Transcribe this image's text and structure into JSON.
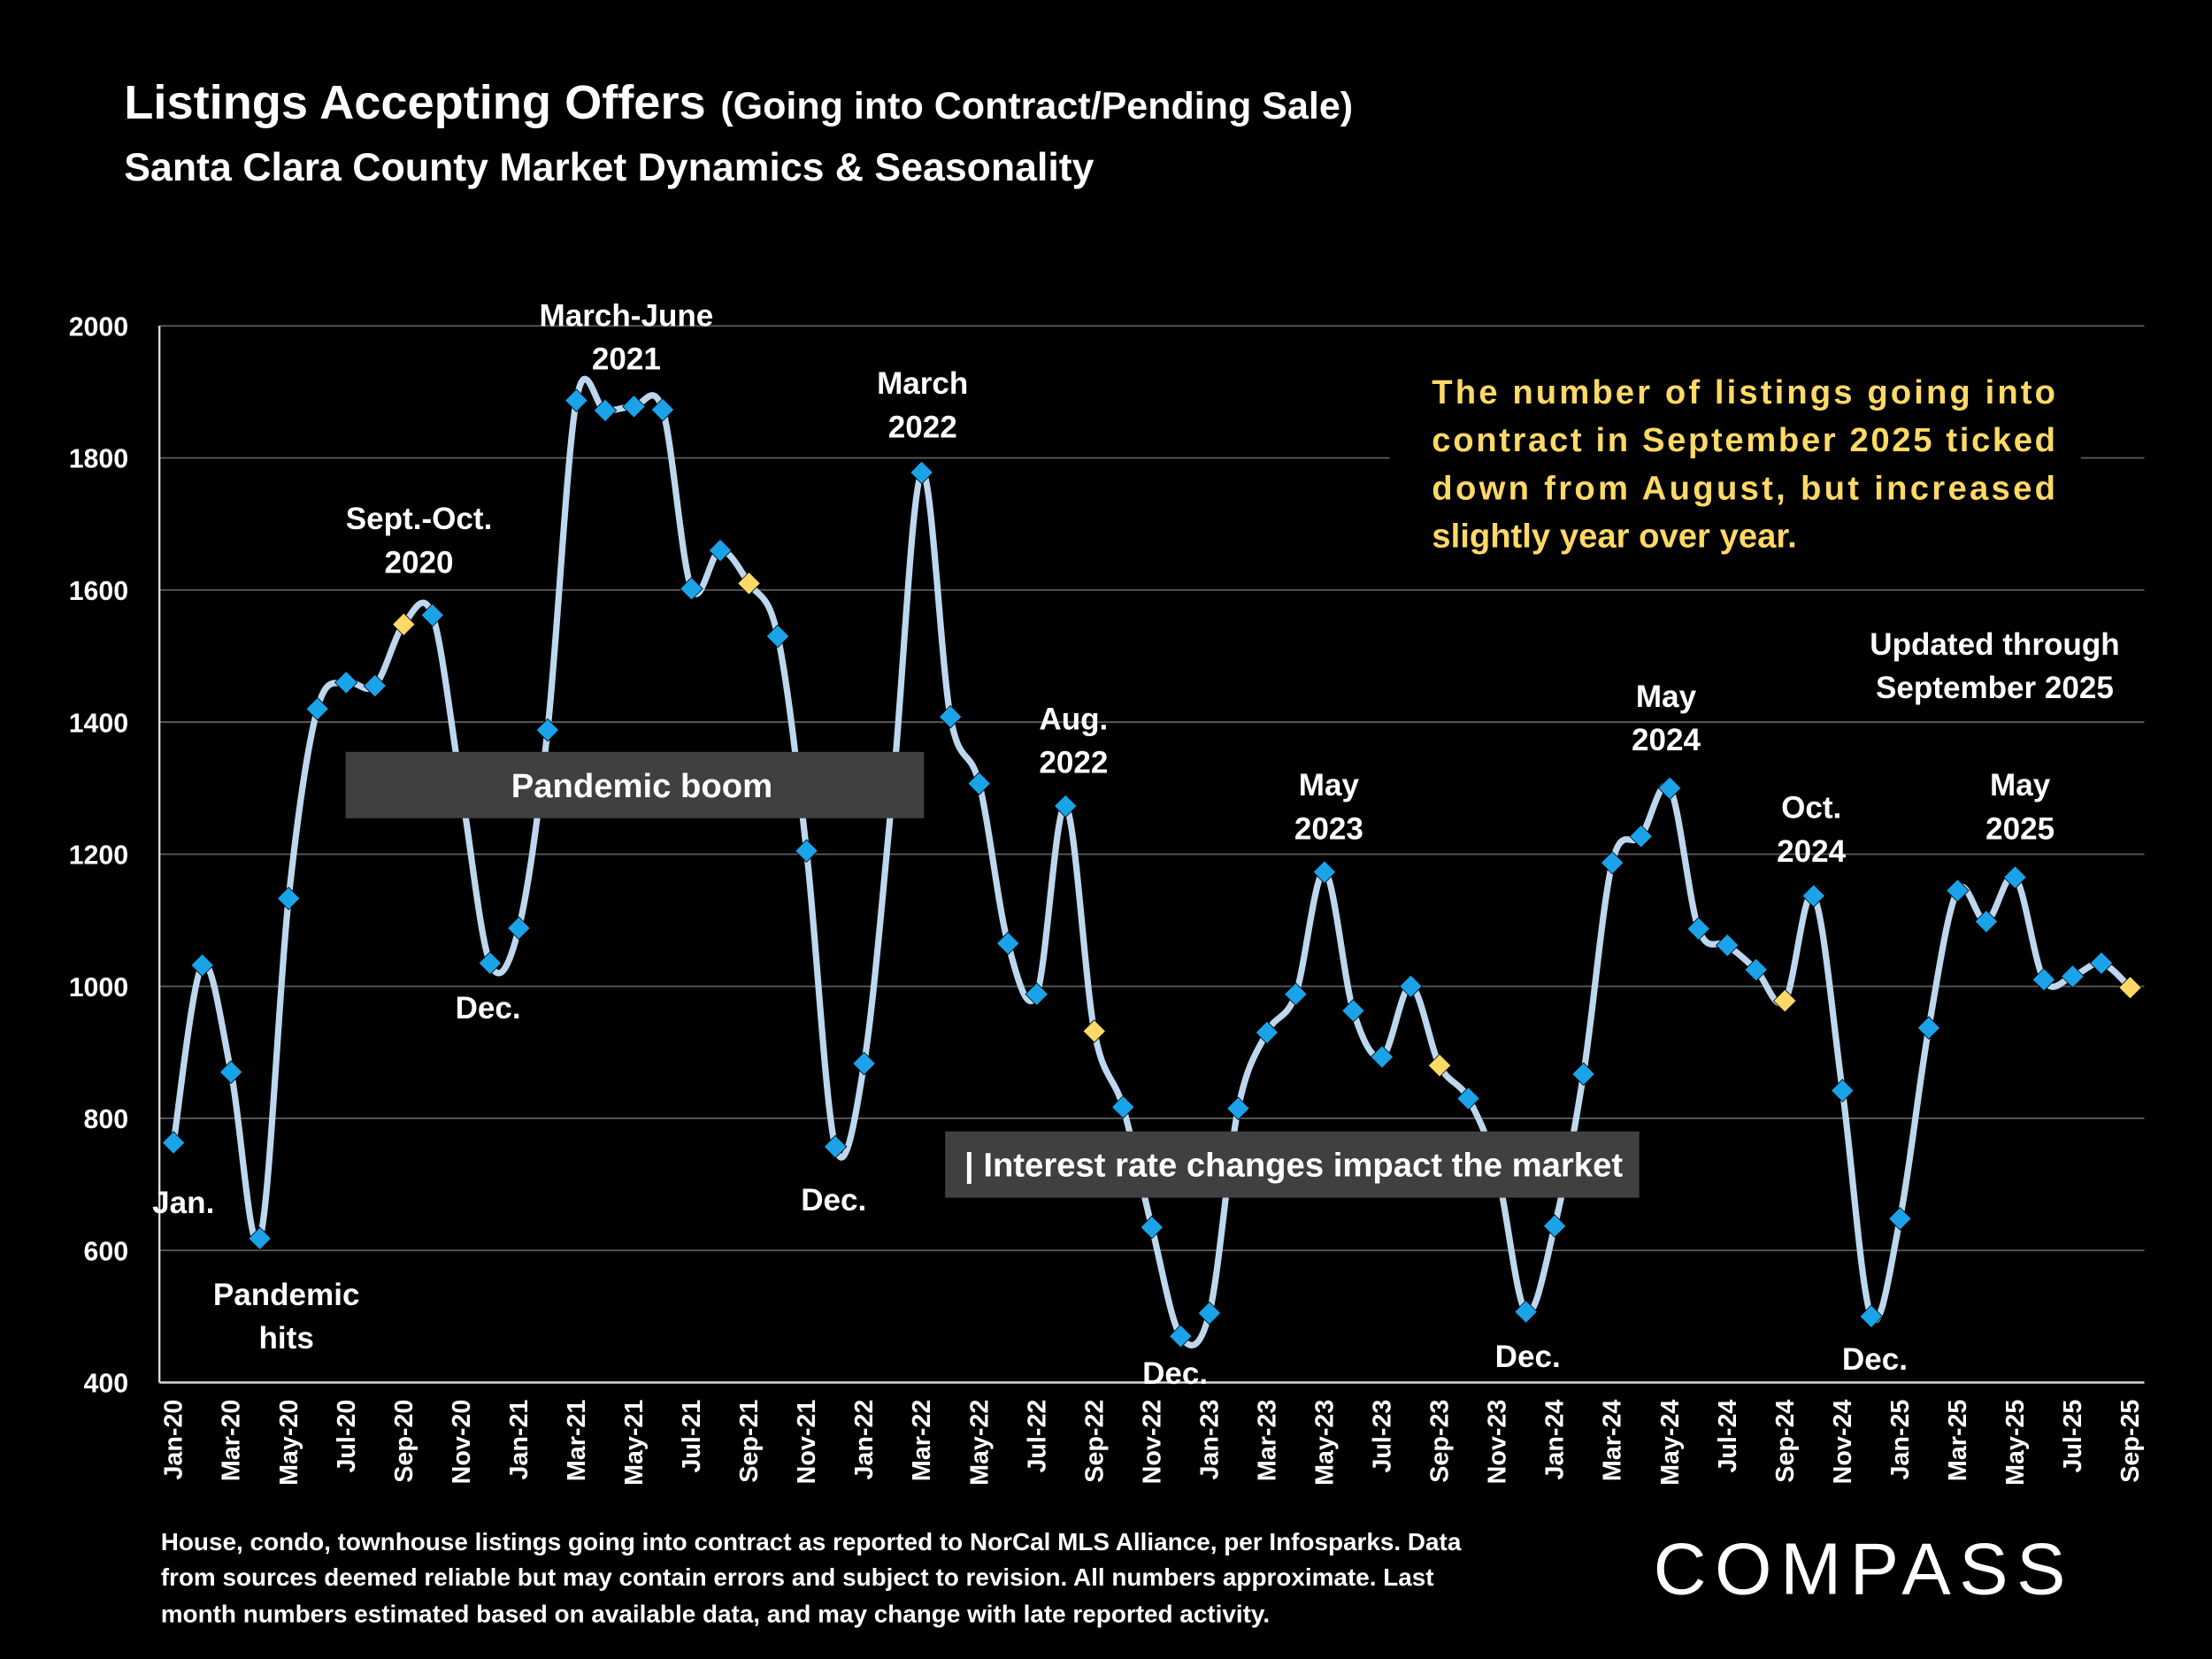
{
  "header": {
    "title": "Listings Accepting Offers",
    "title_suffix": "(Going into Contract/Pending Sale)",
    "subtitle": "Santa Clara County Market Dynamics & Seasonality"
  },
  "chart_data": {
    "type": "line",
    "title": "Listings Accepting Offers (Going into Contract/Pending Sale)",
    "xlabel": "",
    "ylabel": "",
    "ylim": [
      400,
      2000
    ],
    "yticks": [
      400,
      600,
      800,
      1000,
      1200,
      1400,
      1600,
      1800,
      2000
    ],
    "grid": true,
    "smoothed": true,
    "colors": {
      "line": "#bdd7ee",
      "marker": "#1aa3e8",
      "highlight_marker": "#ffd966",
      "grid": "#595959"
    },
    "highlight_rule": "September months shown with yellow markers",
    "x": [
      "Jan-20",
      "Feb-20",
      "Mar-20",
      "Apr-20",
      "May-20",
      "Jun-20",
      "Jul-20",
      "Aug-20",
      "Sep-20",
      "Oct-20",
      "Nov-20",
      "Dec-20",
      "Jan-21",
      "Feb-21",
      "Mar-21",
      "Apr-21",
      "May-21",
      "Jun-21",
      "Jul-21",
      "Aug-21",
      "Sep-21",
      "Oct-21",
      "Nov-21",
      "Dec-21",
      "Jan-22",
      "Feb-22",
      "Mar-22",
      "Apr-22",
      "May-22",
      "Jun-22",
      "Jul-22",
      "Aug-22",
      "Sep-22",
      "Oct-22",
      "Nov-22",
      "Dec-22",
      "Jan-23",
      "Feb-23",
      "Mar-23",
      "Apr-23",
      "May-23",
      "Jun-23",
      "Jul-23",
      "Aug-23",
      "Sep-23",
      "Oct-23",
      "Nov-23",
      "Dec-23",
      "Jan-24",
      "Feb-24",
      "Mar-24",
      "Apr-24",
      "May-24",
      "Jun-24",
      "Jul-24",
      "Aug-24",
      "Sep-24",
      "Oct-24",
      "Nov-24",
      "Dec-24",
      "Jan-25",
      "Feb-25",
      "Mar-25",
      "Apr-25",
      "May-25",
      "Jun-25",
      "Jul-25",
      "Aug-25",
      "Sep-25"
    ],
    "xtick_labels": [
      "Jan-20",
      "Mar-20",
      "May-20",
      "Jul-20",
      "Sep-20",
      "Nov-20",
      "Jan-21",
      "Mar-21",
      "May-21",
      "Jul-21",
      "Sep-21",
      "Nov-21",
      "Jan-22",
      "Mar-22",
      "May-22",
      "Jul-22",
      "Sep-22",
      "Nov-22",
      "Jan-23",
      "Mar-23",
      "May-23",
      "Jul-23",
      "Sep-23",
      "Nov-23",
      "Jan-24",
      "Mar-24",
      "May-24",
      "Jul-24",
      "Sep-24",
      "Nov-24",
      "Jan-25",
      "Mar-25",
      "May-25",
      "Jul-25",
      "Sep-25"
    ],
    "values": [
      763,
      1032,
      870,
      618,
      1133,
      1420,
      1460,
      1455,
      1548,
      1562,
      1300,
      1035,
      1088,
      1388,
      1887,
      1872,
      1878,
      1873,
      1602,
      1660,
      1610,
      1530,
      1205,
      757,
      883,
      1300,
      1778,
      1408,
      1307,
      1065,
      988,
      1273,
      932,
      817,
      635,
      470,
      505,
      815,
      930,
      988,
      1173,
      963,
      893,
      1000,
      880,
      830,
      720,
      507,
      637,
      867,
      1187,
      1227,
      1300,
      1087,
      1062,
      1025,
      978,
      1137,
      842,
      500,
      648,
      937,
      1145,
      1098,
      1165,
      1010,
      1015,
      1035,
      998
    ],
    "highlight_months": [
      "Sep-20",
      "Sep-21",
      "Sep-22",
      "Sep-23",
      "Sep-24",
      "Sep-25"
    ]
  },
  "annotations": {
    "jan": "Jan.",
    "pandemic_hits": [
      "Pandemic",
      "hits"
    ],
    "sept_oct_2020": [
      "Sept.-Oct.",
      "2020"
    ],
    "dec_2020": "Dec.",
    "march_june_2021": [
      "March-June",
      "2021"
    ],
    "march_2022": [
      "March",
      "2022"
    ],
    "dec_2021": "Dec.",
    "aug_2022": [
      "Aug.",
      "2022"
    ],
    "dec_2022": "Dec.",
    "may_2023": [
      "May",
      "2023"
    ],
    "dec_2023": "Dec.",
    "may_2024": [
      "May",
      "2024"
    ],
    "oct_2024": [
      "Oct.",
      "2024"
    ],
    "dec_2024": "Dec.",
    "may_2025": [
      "May",
      "2025"
    ],
    "updated": [
      "Updated through",
      "September 2025"
    ],
    "pandemic_boom": "Pandemic boom",
    "interest_rate": "| Interest rate changes impact the market"
  },
  "note": {
    "lines": [
      "The number of listings going into",
      "contract in September 2025 ticked",
      "down from August, but increased",
      "slightly year over year."
    ],
    "color": "#ffd966"
  },
  "footer": {
    "lines": [
      "House, condo, townhouse listings going into contract as reported to NorCal MLS Alliance, per Infosparks. Data",
      "from sources deemed reliable but may contain errors and subject to revision. All numbers approximate. Last",
      "month numbers estimated based on available data, and may change with late reported activity."
    ]
  },
  "logo": {
    "text": "COMPASS"
  }
}
